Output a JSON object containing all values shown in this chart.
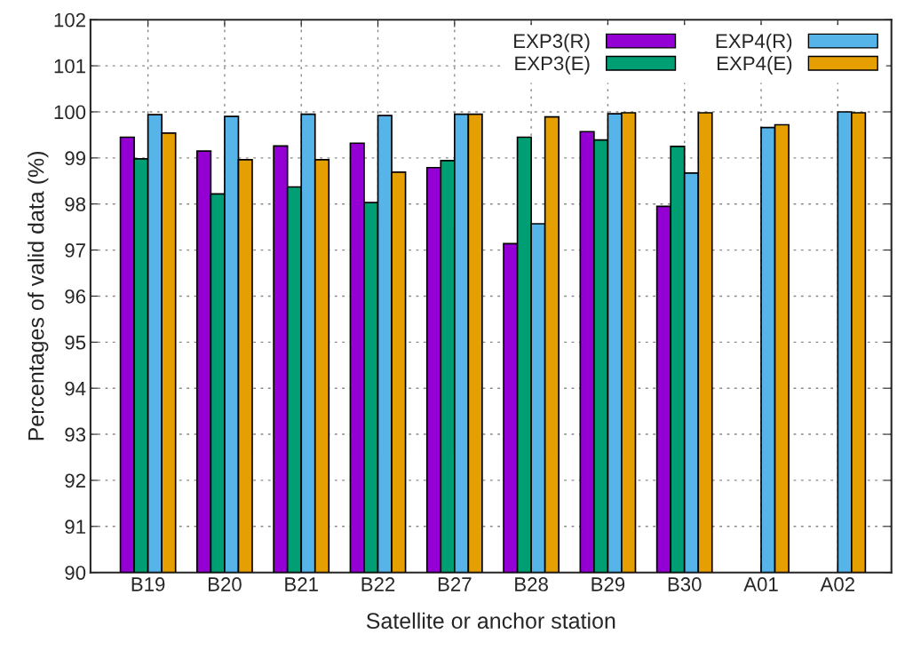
{
  "chart_data": {
    "type": "bar",
    "xlabel": "Satellite or anchor station",
    "ylabel": "Percentages of valid data (%)",
    "categories": [
      "B19",
      "B20",
      "B21",
      "B22",
      "B27",
      "B28",
      "B29",
      "B30",
      "A01",
      "A02"
    ],
    "series": [
      {
        "name": "EXP3(R)",
        "color": "#9400d3",
        "values": [
          99.45,
          99.15,
          99.26,
          99.32,
          98.79,
          97.14,
          99.57,
          97.95,
          null,
          null
        ]
      },
      {
        "name": "EXP3(E)",
        "color": "#009e73",
        "values": [
          98.98,
          98.22,
          98.37,
          98.03,
          98.94,
          99.45,
          99.39,
          99.25,
          null,
          null
        ]
      },
      {
        "name": "EXP4(R)",
        "color": "#56b4e9",
        "values": [
          99.94,
          99.9,
          99.95,
          99.92,
          99.95,
          97.57,
          99.96,
          98.67,
          99.66,
          100.0
        ]
      },
      {
        "name": "EXP4(E)",
        "color": "#e69f00",
        "values": [
          99.54,
          98.96,
          98.96,
          98.69,
          99.95,
          99.89,
          99.98,
          99.98,
          99.72,
          99.98
        ]
      }
    ],
    "ylim": [
      90,
      102
    ],
    "yticks": [
      90,
      91,
      92,
      93,
      94,
      95,
      96,
      97,
      98,
      99,
      100,
      101,
      102
    ],
    "grid": true,
    "legend": "top right"
  }
}
